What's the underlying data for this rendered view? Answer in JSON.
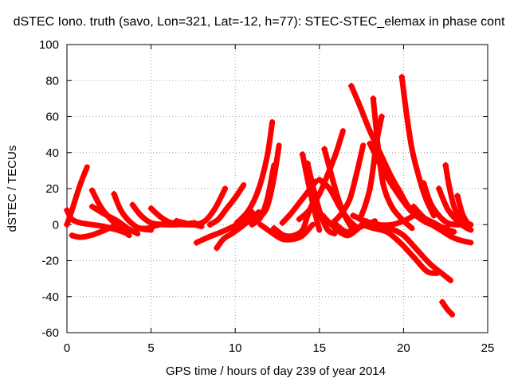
{
  "chart_data": {
    "type": "line",
    "title": "dSTEC Iono. truth (savo, Lon=321, Lat=-12, h=77): STEC-STEC_elemax in phase cont",
    "xlabel": "GPS time / hours of day 239 of year 2014",
    "ylabel": "dSTEC  / TECUs",
    "xlim": [
      0,
      25
    ],
    "ylim": [
      -60,
      100
    ],
    "xticks": [
      0,
      5,
      10,
      15,
      20,
      25
    ],
    "yticks": [
      -60,
      -40,
      -20,
      0,
      20,
      40,
      60,
      80,
      100
    ],
    "grid": true,
    "series_color": "#ff0000",
    "marker": "plus",
    "series": [
      {
        "x": [
          0.0,
          0.3,
          0.6,
          0.9,
          1.2
        ],
        "y": [
          0,
          8,
          17,
          25,
          32
        ]
      },
      {
        "x": [
          0.0,
          0.3,
          0.8,
          1.5,
          2.2,
          2.6,
          3.0,
          3.6
        ],
        "y": [
          8,
          3,
          1,
          0,
          -1,
          -2,
          -3,
          -5
        ]
      },
      {
        "x": [
          0.3,
          0.8,
          1.4,
          2.0,
          2.5,
          3.0
        ],
        "y": [
          -6,
          -7,
          -6,
          -4,
          -2,
          0
        ]
      },
      {
        "x": [
          1.5,
          2.0,
          2.6,
          3.2,
          3.7
        ],
        "y": [
          19,
          10,
          3,
          -2,
          -6
        ]
      },
      {
        "x": [
          1.5,
          2.2,
          3.0,
          3.6,
          4.2
        ],
        "y": [
          10,
          6,
          2,
          -2,
          -5
        ]
      },
      {
        "x": [
          2.8,
          3.2,
          3.7,
          4.3,
          5.0
        ],
        "y": [
          17,
          8,
          2,
          -2,
          -3
        ]
      },
      {
        "x": [
          3.9,
          4.4,
          5.0,
          5.8,
          6.6,
          7.6
        ],
        "y": [
          11,
          5,
          1,
          0,
          0,
          1
        ]
      },
      {
        "x": [
          4.2,
          4.8,
          5.5,
          6.5,
          7.5,
          8.0
        ],
        "y": [
          -2,
          -2,
          0,
          1,
          0,
          -1
        ]
      },
      {
        "x": [
          5.0,
          5.6,
          6.2,
          7.0,
          7.7
        ],
        "y": [
          9,
          4,
          1,
          0,
          0
        ]
      },
      {
        "x": [
          6.5,
          7.0,
          7.5,
          8.2,
          8.8,
          9.4
        ],
        "y": [
          2,
          1,
          0,
          2,
          9,
          20
        ]
      },
      {
        "x": [
          7.7,
          8.4,
          9.2,
          9.9,
          10.6,
          11.0
        ],
        "y": [
          -10,
          -7,
          -4,
          -1,
          3,
          7
        ]
      },
      {
        "x": [
          8.9,
          9.3,
          9.8,
          10.4,
          10.9,
          11.4
        ],
        "y": [
          -13,
          -8,
          -5,
          -1,
          3,
          7
        ]
      },
      {
        "x": [
          8.5,
          9.0,
          9.5,
          10.0,
          10.5
        ],
        "y": [
          0,
          3,
          9,
          15,
          22
        ]
      },
      {
        "x": [
          10.1,
          10.8,
          11.4,
          11.9,
          12.2
        ],
        "y": [
          1,
          8,
          20,
          38,
          57
        ]
      },
      {
        "x": [
          10.7,
          11.4,
          11.9,
          12.3,
          12.6
        ],
        "y": [
          2,
          4,
          10,
          26,
          44
        ]
      },
      {
        "x": [
          11.0,
          11.5,
          11.9,
          12.3
        ],
        "y": [
          0,
          4,
          14,
          33
        ]
      },
      {
        "x": [
          11.5,
          12.1,
          12.8,
          13.5,
          14.0,
          14.6
        ],
        "y": [
          0,
          -4,
          -8,
          -8,
          -6,
          0
        ]
      },
      {
        "x": [
          12.3,
          12.9,
          13.5,
          14.0,
          14.3,
          14.6
        ],
        "y": [
          -2,
          -6,
          -6,
          -3,
          5,
          12
        ]
      },
      {
        "x": [
          12.8,
          13.3,
          13.8,
          14.3,
          14.8
        ],
        "y": [
          1,
          6,
          12,
          18,
          24
        ]
      },
      {
        "x": [
          14.0,
          14.3,
          14.7,
          15.0
        ],
        "y": [
          39,
          25,
          8,
          -3
        ]
      },
      {
        "x": [
          14.3,
          14.7,
          15.1,
          15.5,
          15.9
        ],
        "y": [
          34,
          18,
          5,
          -3,
          -5
        ]
      },
      {
        "x": [
          13.8,
          14.4,
          15.0,
          15.5,
          16.0,
          16.4
        ],
        "y": [
          3,
          8,
          17,
          28,
          40,
          52
        ]
      },
      {
        "x": [
          15.3,
          15.7,
          16.1,
          16.5,
          17.0
        ],
        "y": [
          42,
          28,
          15,
          5,
          -3
        ]
      },
      {
        "x": [
          15.2,
          15.7,
          16.2,
          16.7,
          17.2,
          17.8
        ],
        "y": [
          5,
          0,
          -4,
          -6,
          -3,
          2
        ]
      },
      {
        "x": [
          15.0,
          15.6,
          16.2,
          16.8,
          17.3
        ],
        "y": [
          25,
          20,
          10,
          2,
          -2
        ]
      },
      {
        "x": [
          16.0,
          16.6,
          17.2,
          17.8,
          18.3
        ],
        "y": [
          0,
          -4,
          -2,
          0,
          2
        ]
      },
      {
        "x": [
          15.8,
          16.3,
          16.8,
          17.2,
          17.6
        ],
        "y": [
          1,
          6,
          14,
          28,
          44
        ]
      },
      {
        "x": [
          16.9,
          17.4,
          18.0,
          18.6,
          19.2,
          19.8,
          20.3,
          21.0
        ],
        "y": [
          77,
          66,
          52,
          40,
          28,
          18,
          10,
          5
        ]
      },
      {
        "x": [
          18.2,
          18.5,
          18.8,
          19.3,
          19.9,
          20.5
        ],
        "y": [
          70,
          42,
          22,
          10,
          3,
          -2
        ]
      },
      {
        "x": [
          18.7,
          18.4,
          18.2,
          18.0,
          17.7,
          17.4
        ],
        "y": [
          60,
          46,
          32,
          20,
          10,
          3
        ]
      },
      {
        "x": [
          17.0,
          17.7,
          18.5,
          19.3,
          20.0,
          20.6
        ],
        "y": [
          5,
          2,
          0,
          0,
          2,
          5
        ]
      },
      {
        "x": [
          17.5,
          18.2,
          19.0,
          19.8,
          20.6,
          21.4,
          22.0
        ],
        "y": [
          0,
          -2,
          -4,
          -10,
          -18,
          -26,
          -27
        ]
      },
      {
        "x": [
          18.5,
          19.2,
          20.0,
          20.8,
          21.6,
          22.4,
          22.8
        ],
        "y": [
          0,
          -2,
          -6,
          -14,
          -22,
          -28,
          -31
        ]
      },
      {
        "x": [
          18.0,
          18.8,
          19.6,
          20.4,
          21.2,
          22.0,
          22.6
        ],
        "y": [
          45,
          30,
          18,
          8,
          2,
          -1,
          -2
        ]
      },
      {
        "x": [
          19.9,
          20.2,
          20.5,
          20.9,
          21.3,
          21.8
        ],
        "y": [
          82,
          60,
          42,
          27,
          15,
          5
        ]
      },
      {
        "x": [
          20.6,
          21.2,
          21.8,
          22.4,
          23.0
        ],
        "y": [
          10,
          4,
          1,
          -2,
          -4
        ]
      },
      {
        "x": [
          21.2,
          21.6,
          22.1,
          22.6,
          23.1,
          23.6
        ],
        "y": [
          23,
          12,
          5,
          1,
          0,
          0
        ]
      },
      {
        "x": [
          22.1,
          22.6,
          23.1,
          23.6,
          24.0
        ],
        "y": [
          20,
          9,
          3,
          -1,
          -3
        ]
      },
      {
        "x": [
          22.5,
          22.7,
          23.0,
          23.4,
          23.9
        ],
        "y": [
          33,
          22,
          10,
          3,
          0
        ]
      },
      {
        "x": [
          23.2,
          23.5,
          23.8,
          24.0
        ],
        "y": [
          16,
          6,
          1,
          0
        ]
      },
      {
        "x": [
          21.5,
          22.2,
          22.9,
          23.5,
          24.0
        ],
        "y": [
          1,
          -3,
          -7,
          -9,
          -10
        ]
      },
      {
        "x": [
          22.3,
          22.6,
          22.9
        ],
        "y": [
          -43,
          -47,
          -50
        ]
      }
    ]
  }
}
